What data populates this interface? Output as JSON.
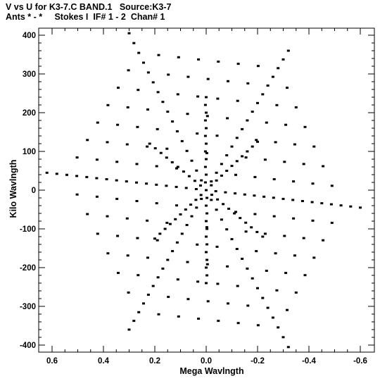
{
  "header": {
    "title_line1": "V vs U for K3-7.C BAND.1   Source:K3-7",
    "title_line2": "Ants * - *     Stokes I  IF# 1 - 2  Chan# 1"
  },
  "chart_data": {
    "type": "scatter",
    "title": "V vs U for K3-7.C BAND.1   Source:K3-7",
    "subtitle": "Ants * - *     Stokes I  IF# 1 - 2  Chan# 1",
    "xlabel": "Mega Wavlngth",
    "ylabel": "Kilo Wavlngth",
    "xlim": [
      0.62,
      -0.64
    ],
    "ylim": [
      -420,
      420
    ],
    "x_axis_reversed": true,
    "x_ticks": [
      0.6,
      0.4,
      0.2,
      0.0,
      -0.2,
      -0.4,
      -0.6
    ],
    "x_tick_labels": [
      "0.6",
      "0.4",
      "0.2",
      "0.0",
      "-0.2",
      "-0.4",
      "-0.6"
    ],
    "y_ticks": [
      400,
      300,
      200,
      100,
      0,
      -100,
      -200,
      -300,
      -400
    ],
    "y_tick_labels": [
      "400",
      "300",
      "200",
      "100",
      "0",
      "-100",
      "-200",
      "-300",
      "-400"
    ],
    "grid": false,
    "legend": "none",
    "marker_color": "#000000",
    "pattern": "six-armed radial star of baseline tracks; arm tips at (0.30, 405), (-0.32, 360), (0.62, 45), (-0.60, -45), (0.30, -360), (-0.32, -405) in plotted units",
    "arms": [
      {
        "name": "upper-left",
        "tip": [
          0.3,
          405
        ]
      },
      {
        "name": "upper-right",
        "tip": [
          -0.32,
          360
        ]
      },
      {
        "name": "left",
        "tip": [
          0.62,
          45
        ]
      },
      {
        "name": "right",
        "tip": [
          -0.6,
          -45
        ]
      },
      {
        "name": "lower-left",
        "tip": [
          0.3,
          -360
        ]
      },
      {
        "name": "lower-right",
        "tip": [
          -0.32,
          -405
        ]
      }
    ]
  }
}
